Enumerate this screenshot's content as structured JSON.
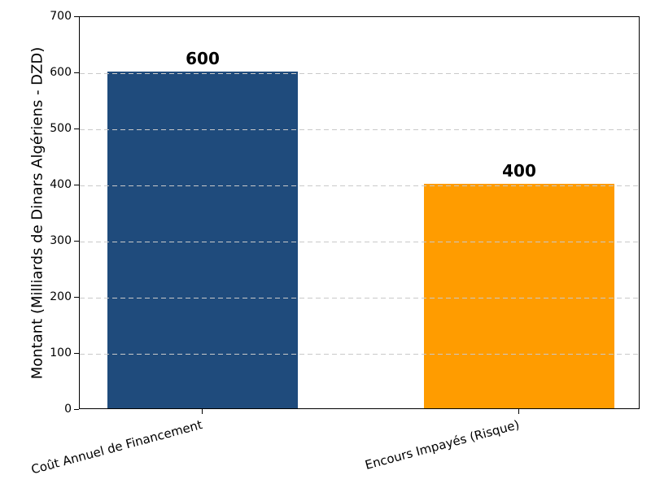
{
  "figure": {
    "background": "#ffffff"
  },
  "chart_data": {
    "type": "bar",
    "categories": [
      "Coût Annuel de Financement",
      "Encours Impayés (Risque)"
    ],
    "values": [
      600,
      400
    ],
    "bar_colors": [
      "#1F4B7C",
      "#FF9C00"
    ],
    "ylabel": "Montant (Milliards de Dinars Algériens - DZD)",
    "ylim": [
      0,
      700
    ],
    "yticks": [
      0,
      100,
      200,
      300,
      400,
      500,
      600,
      700
    ],
    "grid": {
      "axis": "y",
      "style": "dashed",
      "color": "#c9c9c9"
    },
    "xtick_rotation_deg": 15,
    "legend": null
  }
}
